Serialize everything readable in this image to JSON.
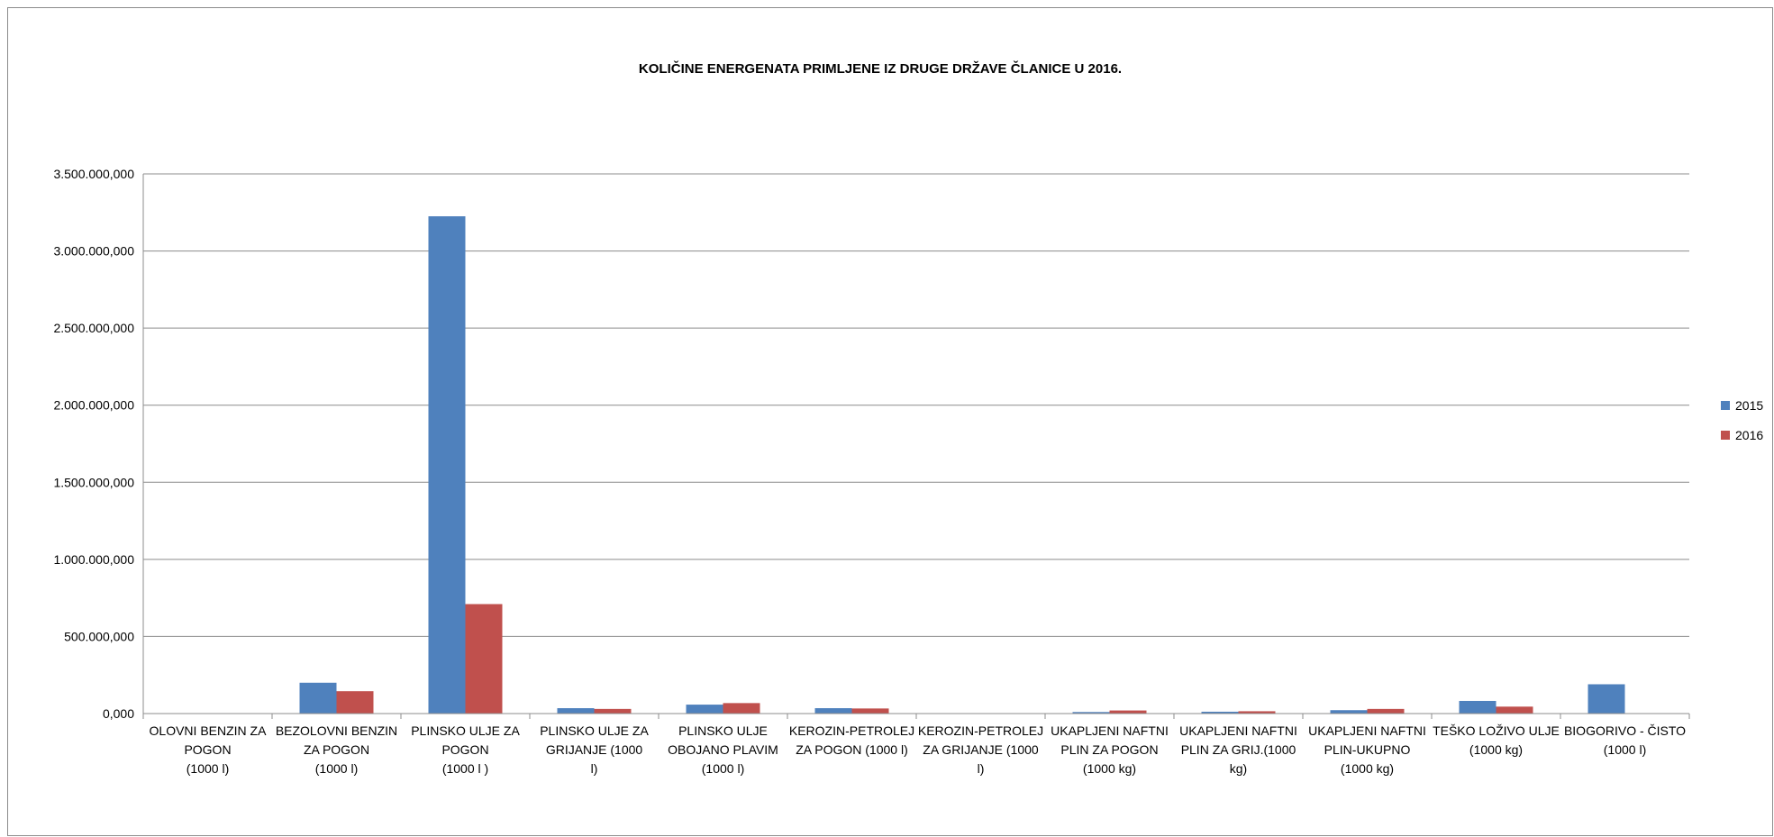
{
  "chart_data": {
    "type": "bar",
    "title": "KOLIČINE ENERGENATA PRIMLJENE IZ DRUGE DRŽAVE ČLANICE U 2016.",
    "xlabel": "",
    "ylabel": "",
    "ylim": [
      0,
      3500000000
    ],
    "yticks": [
      "0,000",
      "500.000,000",
      "1.000.000,000",
      "1.500.000,000",
      "2.000.000,000",
      "2.500.000,000",
      "3.000.000,000",
      "3.500.000,000"
    ],
    "grid": true,
    "legend_position": "right",
    "categories": [
      [
        "OLOVNI BENZIN ZA",
        "POGON",
        "(1000 l)"
      ],
      [
        "BEZOLOVNI BENZIN",
        "ZA POGON",
        "(1000 l)"
      ],
      [
        "PLINSKO ULJE ZA",
        "POGON",
        "(1000 l )"
      ],
      [
        "PLINSKO ULJE ZA",
        "GRIJANJE       (1000",
        "l)"
      ],
      [
        "PLINSKO ULJE",
        "OBOJANO PLAVIM",
        "(1000 l)"
      ],
      [
        "KEROZIN-PETROLEJ",
        "ZA POGON (1000 l)"
      ],
      [
        "KEROZIN-PETROLEJ",
        "ZA GRIJANJE (1000",
        "l)"
      ],
      [
        "UKAPLJENI NAFTNI",
        "PLIN ZA POGON",
        "(1000 kg)"
      ],
      [
        "UKAPLJENI NAFTNI",
        "PLIN ZA GRIJ.(1000",
        "kg)"
      ],
      [
        "UKAPLJENI NAFTNI",
        "PLIN-UKUPNO",
        "(1000 kg)"
      ],
      [
        "TEŠKO LOŽIVO ULJE",
        "(1000 kg)"
      ],
      [
        "BIOGORIVO - ČISTO",
        "(1000 l)"
      ]
    ],
    "series": [
      {
        "name": "2015",
        "color": "#4F81BD",
        "values": [
          0,
          200000000,
          3225000000,
          35000000,
          58000000,
          35000000,
          0,
          10000000,
          12000000,
          22000000,
          82000000,
          190000000
        ]
      },
      {
        "name": "2016",
        "color": "#C0504D",
        "values": [
          0,
          145000000,
          710000000,
          30000000,
          68000000,
          33000000,
          0,
          20000000,
          15000000,
          30000000,
          45000000,
          0
        ]
      }
    ]
  }
}
